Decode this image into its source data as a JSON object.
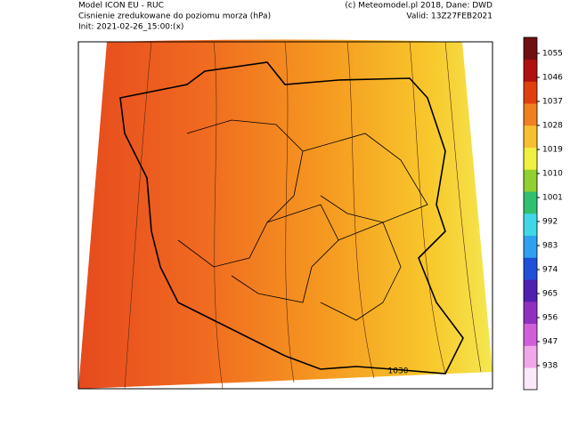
{
  "header": {
    "model": "Model ICON EU - RUC",
    "field": "Cisnienie zredukowane do poziomu morza (hPa)",
    "init": "Init: 2021-02-26_15:00:(x)",
    "copyright": "(c) Meteomodel.pl 2018, Dane: DWD",
    "valid": "Valid: 13Z27FEB2021"
  },
  "map": {
    "contour_label": "1030"
  },
  "colorbar": {
    "range": [
      929,
      1061
    ],
    "ticks": [
      1055,
      1046,
      1037,
      1028,
      1019,
      1010,
      1001,
      992,
      983,
      974,
      965,
      956,
      947,
      938
    ],
    "colors": [
      "#fbe8f8",
      "#f0a8e8",
      "#d060d8",
      "#9030c0",
      "#5020b0",
      "#2050d8",
      "#30a0f0",
      "#40d8e8",
      "#30c070",
      "#90d030",
      "#f0f040",
      "#f8c030",
      "#f08020",
      "#e04010",
      "#b01010",
      "#701010"
    ]
  }
}
